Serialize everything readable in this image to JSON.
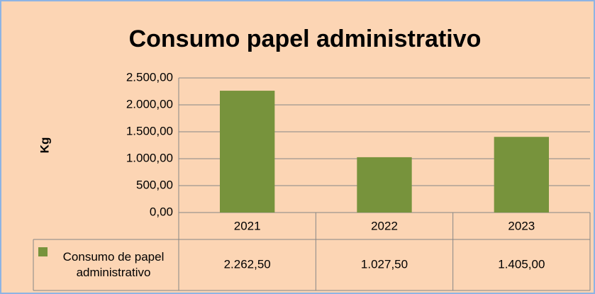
{
  "chart_data": {
    "type": "bar",
    "title": "Consumo papel administrativo",
    "y_label": "Kg",
    "categories": [
      "2021",
      "2022",
      "2023"
    ],
    "series": [
      {
        "name": "Consumo de papel administrativo",
        "color": "#77933c",
        "values": [
          2262.5,
          1027.5,
          1405
        ],
        "value_labels": [
          "2.262,50",
          "1.027,50",
          "1.405,00"
        ]
      }
    ],
    "ylim": [
      0,
      2500
    ],
    "yticks": [
      {
        "value": 0,
        "label": "0,00"
      },
      {
        "value": 500,
        "label": "500,00"
      },
      {
        "value": 1000,
        "label": "1.000,00"
      },
      {
        "value": 1500,
        "label": "1.500,00"
      },
      {
        "value": 2000,
        "label": "2.000,00"
      },
      {
        "value": 2500,
        "label": "2.500,00"
      }
    ],
    "grid": true,
    "legend": "data-table"
  }
}
